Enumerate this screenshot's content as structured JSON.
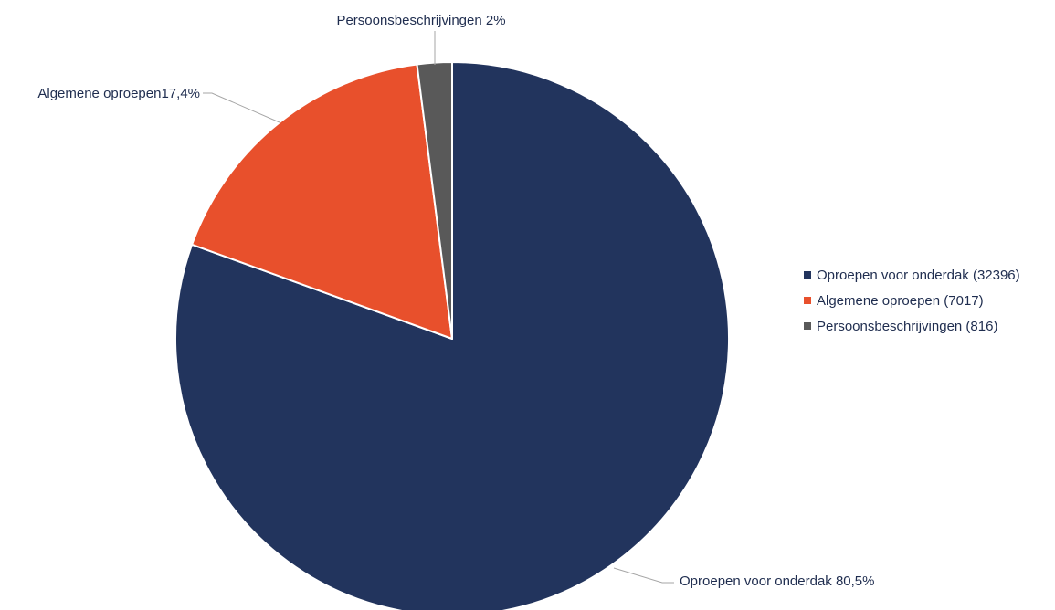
{
  "chart_data": {
    "type": "pie",
    "slices": [
      {
        "name": "Oproepen voor onderdak",
        "value": 32396,
        "percent": 80.5,
        "slice_label": "Oproepen voor onderdak 80,5%",
        "legend_label": "Oproepen voor onderdak (32396)",
        "color": "#22345d"
      },
      {
        "name": "Algemene oproepen",
        "value": 7017,
        "percent": 17.4,
        "slice_label": "Algemene oproepen17,4%",
        "legend_label": "Algemene oproepen (7017)",
        "color": "#e8502c"
      },
      {
        "name": "Persoonsbeschrijvingen",
        "value": 816,
        "percent": 2,
        "slice_label": "Persoonsbeschrijvingen 2%",
        "legend_label": "Persoonsbeschrijvingen (816)",
        "color": "#595959"
      }
    ],
    "legend_position": "right"
  }
}
